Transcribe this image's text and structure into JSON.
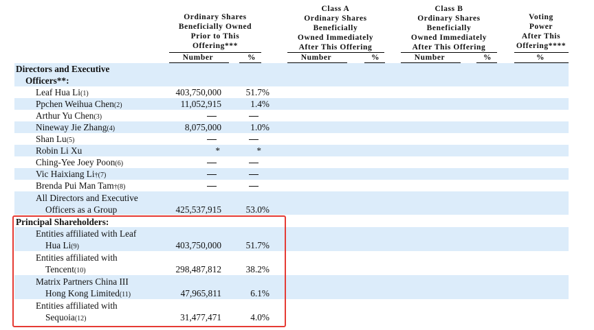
{
  "headers": {
    "col1": [
      "Ordinary Shares",
      "Beneficially Owned",
      "Prior to This",
      "Offering***"
    ],
    "col2": [
      "Class A",
      "Ordinary Shares",
      "Beneficially",
      "Owned Immediately",
      "After This Offering"
    ],
    "col3": [
      "Class B",
      "Ordinary Shares",
      "Beneficially",
      "Owned Immediately",
      "After This Offering"
    ],
    "col4": [
      "Voting",
      "Power",
      "After This",
      "Offering****"
    ],
    "number": "Number",
    "pct": "%"
  },
  "sections": {
    "directors_line1": "Directors and Executive",
    "directors_line2": "Officers**:",
    "principal": "Principal Shareholders:"
  },
  "rows": [
    {
      "name": "Leaf Hua Li",
      "fn": "(1)",
      "number": "403,750,000",
      "pct": "51.7%"
    },
    {
      "name": "Ppchen Weihua Chen",
      "fn": "(2)",
      "number": "11,052,915",
      "pct": "1.4%"
    },
    {
      "name": "Arthur Yu Chen",
      "fn": "(3)",
      "number": "—",
      "pct": "—"
    },
    {
      "name": "Nineway Jie Zhang",
      "fn": "(4)",
      "number": "8,075,000",
      "pct": "1.0%"
    },
    {
      "name": "Shan Lu",
      "fn": "(5)",
      "number": "—",
      "pct": "—"
    },
    {
      "name": "Robin Li Xu",
      "fn": "",
      "number": "*",
      "pct": "*"
    },
    {
      "name": "Ching-Yee Joey Poon",
      "fn": "(6)",
      "number": "—",
      "pct": "—"
    },
    {
      "name": "Vic Haixiang Li",
      "fn": "†(7)",
      "number": "—",
      "pct": "—"
    },
    {
      "name": "Brenda Pui Man Tam",
      "fn": "†(8)",
      "number": "—",
      "pct": "—"
    }
  ],
  "group": {
    "line1": "All Directors and Executive",
    "line2": "Officers as a Group",
    "number": "425,537,915",
    "pct": "53.0%"
  },
  "principal_rows": [
    {
      "line1": "Entities affiliated with Leaf",
      "line2": "Hua Li",
      "fn": "(9)",
      "number": "403,750,000",
      "pct": "51.7%"
    },
    {
      "line1": "Entities affiliated with",
      "line2": "Tencent",
      "fn": "(10)",
      "number": "298,487,812",
      "pct": "38.2%"
    },
    {
      "line1": "Matrix Partners China III",
      "line2": "Hong Kong Limited",
      "fn": "(11)",
      "number": "47,965,811",
      "pct": "6.1%"
    },
    {
      "line1": "Entities affiliated with",
      "line2": "Sequoia",
      "fn": "(12)",
      "number": "31,477,471",
      "pct": "4.0%"
    }
  ],
  "colors": {
    "band": "#dcecfa",
    "highlight": "#e53a33"
  }
}
